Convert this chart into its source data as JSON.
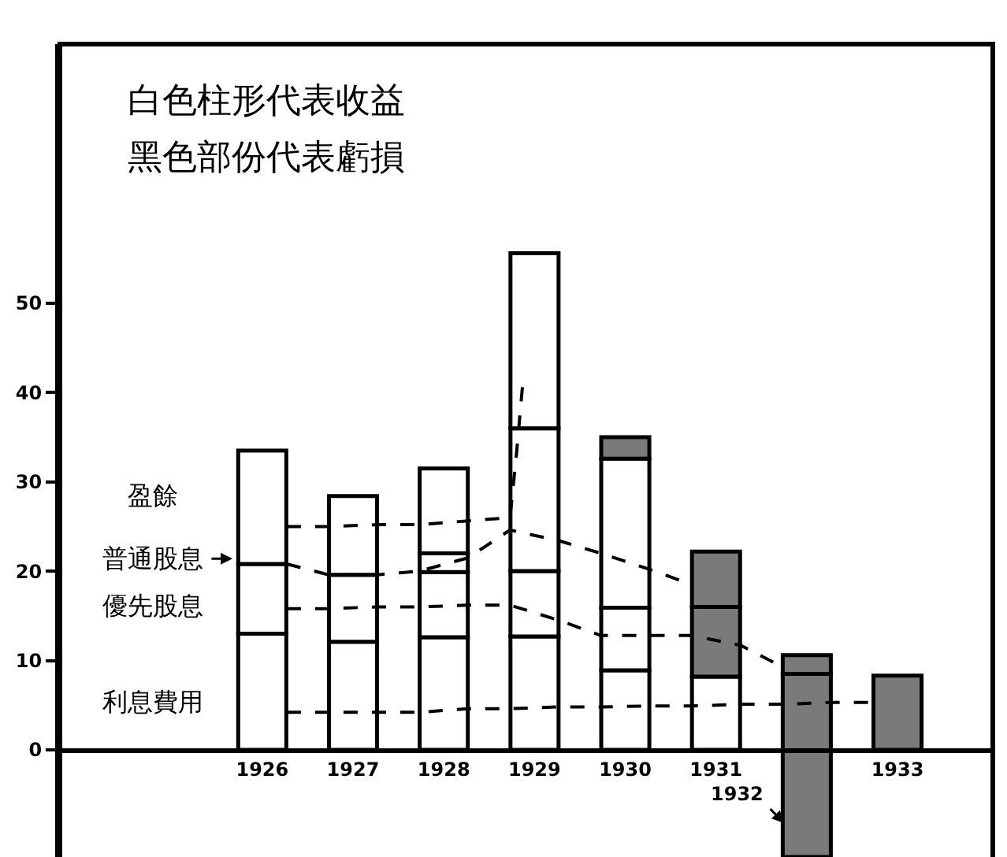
{
  "chart_data": {
    "type": "bar",
    "stacked": true,
    "grid": false,
    "marker": "none",
    "x": [
      1926,
      1927,
      1928,
      1929,
      1930,
      1931,
      1932,
      1933
    ],
    "xlim": [
      1923.77,
      1934.05
    ],
    "ylim": [
      -12,
      79
    ],
    "xticks": [
      1926,
      1927,
      1928,
      1929,
      1930,
      1931,
      1933
    ],
    "yticks": [
      0,
      10,
      20,
      30,
      40,
      50
    ],
    "series": [
      {
        "color": "#ffffff",
        "values": [
          13,
          12.1,
          12.6,
          12.7,
          8.9,
          8.2,
          null,
          null
        ]
      },
      {
        "color": "#ffffff",
        "values": [
          7.8,
          7.5,
          7.3,
          7.3,
          7,
          null,
          null,
          null
        ]
      },
      {
        "color": "#ffffff",
        "values": [
          12.7,
          8.8,
          2.1,
          16,
          16.7,
          null,
          null,
          null
        ]
      },
      {
        "color": "#ffffff",
        "values": [
          null,
          null,
          9.5,
          19.6,
          null,
          null,
          null,
          null
        ]
      },
      {
        "color": "#7a7a7a",
        "base": [
          null,
          null,
          null,
          null,
          32.6,
          8.2,
          -12,
          0
        ],
        "values": [
          null,
          null,
          null,
          null,
          2.4,
          7.8,
          20.5,
          8.3
        ]
      },
      {
        "color": "#7a7a7a",
        "base": [
          null,
          null,
          null,
          null,
          null,
          16,
          8.5,
          null
        ],
        "values": [
          null,
          null,
          null,
          null,
          null,
          6.2,
          2.1,
          null
        ]
      },
      {
        "type": "line",
        "line_style": "dashed",
        "color": "#000000",
        "x": [
          1926.27,
          1926.73,
          1927.27,
          1927.73,
          1928.27,
          1928.73,
          1929.27,
          1929.73,
          1930.27,
          1930.73,
          1931.27,
          1931.73,
          1932.27,
          1932.73
        ],
        "values": [
          4.2,
          4.2,
          4.2,
          4.2,
          4.6,
          4.6,
          4.8,
          4.8,
          4.9,
          4.9,
          5.1,
          5.1,
          5.3,
          5.3
        ]
      },
      {
        "type": "line",
        "line_style": "dashed",
        "color": "#000000",
        "x": [
          1926.27,
          1926.73,
          1927.27,
          1927.73,
          1928.27,
          1928.73,
          1929.27,
          1929.73,
          1930.27,
          1930.73,
          1931.27,
          1931.73
        ],
        "values": [
          15.8,
          15.8,
          16,
          16,
          16.2,
          16.2,
          14.5,
          12.8,
          12.8,
          12.8,
          11.7,
          9.3
        ]
      },
      {
        "type": "line",
        "line_style": "dashed",
        "color": "#000000",
        "x": [
          1926.27,
          1926.5,
          1926.73,
          1927.27,
          1927.73,
          1928.27,
          1928.73,
          1929.27,
          1929.73,
          1930.27,
          1930.73
        ],
        "values": [
          20.8,
          20.2,
          19.6,
          19.6,
          20,
          21.5,
          24.6,
          23.4,
          22,
          20.2,
          18.5
        ]
      },
      {
        "type": "line",
        "line_style": "dashed",
        "color": "#000000",
        "x": [
          1926.27,
          1926.73,
          1927.27,
          1927.73,
          1928.73,
          1928.8,
          1928.87
        ],
        "values": [
          25,
          25,
          25.2,
          25.2,
          26,
          33,
          41
        ]
      }
    ],
    "annotations": [
      "白色柱形代表收益",
      "黑色部份代表虧損",
      "盈餘",
      "普通股息",
      "優先股息",
      "利息費用",
      "1932"
    ]
  }
}
